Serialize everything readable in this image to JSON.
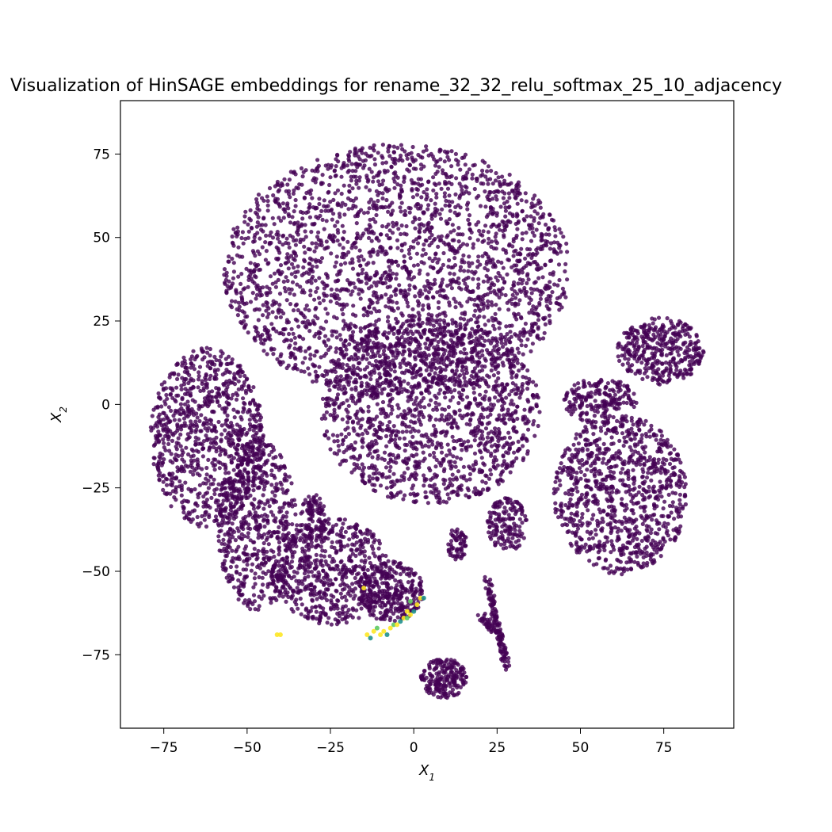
{
  "chart_data": {
    "type": "scatter",
    "title": "Visualization of HinSAGE embeddings for rename_32_32_relu_softmax_25_10_adjacency",
    "xlabel": "X",
    "xlabel_sub": "1",
    "ylabel": "X",
    "ylabel_sub": "2",
    "xlim": [
      -88,
      96
    ],
    "ylim": [
      -97,
      91
    ],
    "xticks": [
      -75,
      -50,
      -25,
      0,
      25,
      50,
      75
    ],
    "yticks": [
      -75,
      -50,
      -25,
      0,
      25,
      50,
      75
    ],
    "xtick_labels": [
      "−75",
      "−50",
      "−25",
      "0",
      "25",
      "50",
      "75"
    ],
    "ytick_labels": [
      "−75",
      "−50",
      "−25",
      "0",
      "25",
      "50",
      "75"
    ],
    "grid": false,
    "legend": "none",
    "colors": {
      "majority": "#440154",
      "minority_yellow": "#fde725",
      "minority_teal": "#21918c",
      "minority_green": "#5ec962"
    },
    "clusters": [
      {
        "name": "upper-main",
        "cx": -5,
        "cy": 40,
        "rx": 52,
        "ry": 38,
        "n": 2600
      },
      {
        "name": "center-main",
        "cx": 5,
        "cy": -2,
        "rx": 33,
        "ry": 28,
        "n": 1500
      },
      {
        "name": "left",
        "cx": -62,
        "cy": -10,
        "rx": 17,
        "ry": 27,
        "n": 900
      },
      {
        "name": "left-lower",
        "cx": -47,
        "cy": -36,
        "rx": 12,
        "ry": 26,
        "n": 600
      },
      {
        "name": "lower-left-blob",
        "cx": -25,
        "cy": -50,
        "rx": 18,
        "ry": 16,
        "n": 650
      },
      {
        "name": "lower-mid",
        "cx": -7,
        "cy": -56,
        "rx": 10,
        "ry": 9,
        "n": 300
      },
      {
        "name": "right-lower",
        "cx": 62,
        "cy": -27,
        "rx": 20,
        "ry": 24,
        "n": 950
      },
      {
        "name": "right-upper",
        "cx": 74,
        "cy": 16,
        "rx": 13,
        "ry": 10,
        "n": 380
      },
      {
        "name": "right-middle",
        "cx": 56,
        "cy": 1,
        "rx": 11,
        "ry": 7,
        "n": 200
      },
      {
        "name": "bottom",
        "cx": 9,
        "cy": -82,
        "rx": 7,
        "ry": 6,
        "n": 200
      },
      {
        "name": "small-center",
        "cx": 28,
        "cy": -36,
        "rx": 6,
        "ry": 8,
        "n": 150
      },
      {
        "name": "small-left-center",
        "cx": 13,
        "cy": -42,
        "rx": 3,
        "ry": 5,
        "n": 60
      },
      {
        "name": "lower-far-left",
        "cx": -30,
        "cy": -33,
        "rx": 4,
        "ry": 6,
        "n": 80
      }
    ],
    "strands": [
      {
        "from": [
          22,
          -52
        ],
        "to": [
          28,
          -79
        ],
        "n": 120
      },
      {
        "from": [
          20,
          -63
        ],
        "to": [
          26,
          -70
        ],
        "n": 40
      }
    ],
    "minority_points": [
      {
        "x": -41,
        "y": -69,
        "class": "yellow"
      },
      {
        "x": -40,
        "y": -69,
        "class": "yellow"
      },
      {
        "x": -14,
        "y": -69,
        "class": "yellow"
      },
      {
        "x": -13,
        "y": -70,
        "class": "teal"
      },
      {
        "x": -12,
        "y": -68,
        "class": "yellow"
      },
      {
        "x": -11,
        "y": -67,
        "class": "green"
      },
      {
        "x": -10,
        "y": -69,
        "class": "yellow"
      },
      {
        "x": -9,
        "y": -68,
        "class": "yellow"
      },
      {
        "x": -8,
        "y": -69,
        "class": "teal"
      },
      {
        "x": -7,
        "y": -67,
        "class": "yellow"
      },
      {
        "x": -6,
        "y": -66,
        "class": "green"
      },
      {
        "x": -5,
        "y": -66,
        "class": "yellow"
      },
      {
        "x": -4,
        "y": -65,
        "class": "teal"
      },
      {
        "x": -3,
        "y": -64,
        "class": "yellow"
      },
      {
        "x": -2,
        "y": -64,
        "class": "green"
      },
      {
        "x": -1,
        "y": -63,
        "class": "yellow"
      },
      {
        "x": -2,
        "y": -62,
        "class": "yellow"
      },
      {
        "x": 0,
        "y": -62,
        "class": "teal"
      },
      {
        "x": 1,
        "y": -60,
        "class": "yellow"
      },
      {
        "x": 2,
        "y": -58,
        "class": "yellow"
      },
      {
        "x": 3,
        "y": -58,
        "class": "teal"
      },
      {
        "x": -1,
        "y": -59,
        "class": "green"
      },
      {
        "x": -15,
        "y": -55,
        "class": "yellow"
      }
    ]
  }
}
